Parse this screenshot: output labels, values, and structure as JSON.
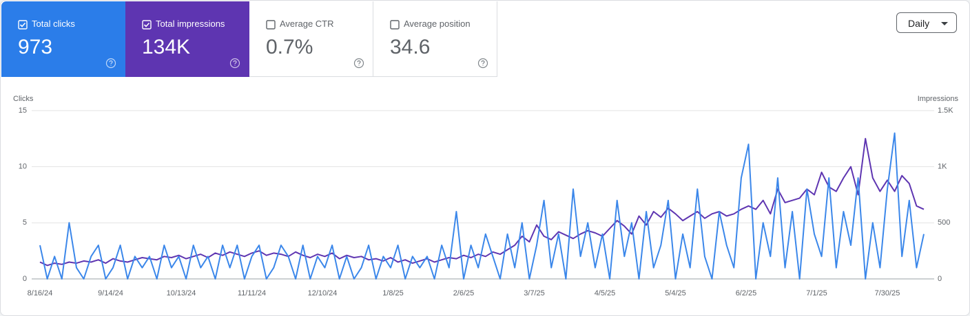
{
  "metrics": [
    {
      "label": "Total clicks",
      "value": "973",
      "checked": true,
      "color": "#2b7de9"
    },
    {
      "label": "Total impressions",
      "value": "134K",
      "checked": true,
      "color": "#5e35b1"
    },
    {
      "label": "Average CTR",
      "value": "0.7%",
      "checked": false
    },
    {
      "label": "Average position",
      "value": "34.6",
      "checked": false
    }
  ],
  "controls": {
    "granularity": "Daily"
  },
  "chart_data": {
    "type": "line",
    "y_label": "Clicks",
    "y2_label": "Impressions",
    "x": [
      "8/16/24",
      "8/19/24",
      "8/22/24",
      "8/25/24",
      "8/28/24",
      "8/31/24",
      "9/3/24",
      "9/6/24",
      "9/9/24",
      "9/12/24",
      "9/15/24",
      "9/18/24",
      "9/21/24",
      "9/24/24",
      "9/27/24",
      "9/30/24",
      "10/3/24",
      "10/6/24",
      "10/9/24",
      "10/12/24",
      "10/15/24",
      "10/18/24",
      "10/21/24",
      "10/24/24",
      "10/27/24",
      "10/30/24",
      "11/2/24",
      "11/5/24",
      "11/8/24",
      "11/11/24",
      "11/14/24",
      "11/17/24",
      "11/20/24",
      "11/23/24",
      "11/26/24",
      "11/29/24",
      "12/2/24",
      "12/5/24",
      "12/8/24",
      "12/11/24",
      "12/14/24",
      "12/17/24",
      "12/20/24",
      "12/23/24",
      "12/26/24",
      "12/29/24",
      "1/1/25",
      "1/4/25",
      "1/7/25",
      "1/10/25",
      "1/13/25",
      "1/16/25",
      "1/19/25",
      "1/22/25",
      "1/25/25",
      "1/28/25",
      "1/31/25",
      "2/3/25",
      "2/6/25",
      "2/9/25",
      "2/12/25",
      "2/15/25",
      "2/18/25",
      "2/21/25",
      "2/24/25",
      "2/27/25",
      "3/2/25",
      "3/5/25",
      "3/8/25",
      "3/11/25",
      "3/14/25",
      "3/17/25",
      "3/20/25",
      "3/23/25",
      "3/26/25",
      "3/29/25",
      "4/1/25",
      "4/4/25",
      "4/7/25",
      "4/10/25",
      "4/13/25",
      "4/16/25",
      "4/19/25",
      "4/22/25",
      "4/25/25",
      "4/28/25",
      "5/1/25",
      "5/4/25",
      "5/7/25",
      "5/10/25",
      "5/13/25",
      "5/16/25",
      "5/19/25",
      "5/22/25",
      "5/25/25",
      "5/28/25",
      "5/31/25",
      "6/3/25",
      "6/6/25",
      "6/9/25",
      "6/12/25",
      "6/15/25",
      "6/18/25",
      "6/21/25",
      "6/24/25",
      "6/27/25",
      "6/30/25",
      "7/3/25",
      "7/6/25",
      "7/9/25",
      "7/12/25",
      "7/15/25",
      "7/18/25",
      "7/21/25",
      "7/24/25",
      "7/27/25",
      "7/30/25",
      "8/2/25",
      "8/5/25",
      "8/8/25",
      "8/11/25",
      "8/14/25"
    ],
    "xlim": [
      "8/16/24",
      "8/14/25"
    ],
    "xticks": [
      "8/16/24",
      "9/14/24",
      "10/13/24",
      "11/11/24",
      "12/10/24",
      "1/8/25",
      "2/6/25",
      "3/7/25",
      "4/5/25",
      "5/4/25",
      "6/2/25",
      "7/1/25",
      "7/30/25"
    ],
    "ylim": [
      0,
      15
    ],
    "yticks": [
      0,
      5,
      10,
      15
    ],
    "y2lim": [
      0,
      1500
    ],
    "y2ticks": [
      0,
      500,
      {
        "value": 1000,
        "label": "1K"
      },
      {
        "value": 1500,
        "label": "1.5K"
      }
    ],
    "grid": true,
    "series": [
      {
        "name": "Impressions",
        "axis": "y2",
        "color": "#5e35b1",
        "values": [
          150,
          120,
          140,
          130,
          150,
          140,
          160,
          150,
          170,
          140,
          180,
          160,
          150,
          170,
          190,
          180,
          170,
          200,
          190,
          210,
          180,
          200,
          220,
          190,
          230,
          210,
          240,
          220,
          200,
          230,
          250,
          210,
          230,
          220,
          200,
          240,
          210,
          190,
          220,
          200,
          230,
          180,
          210,
          190,
          200,
          170,
          180,
          160,
          190,
          150,
          170,
          140,
          160,
          180,
          150,
          170,
          190,
          180,
          210,
          190,
          220,
          200,
          240,
          220,
          260,
          300,
          380,
          330,
          480,
          380,
          350,
          420,
          390,
          360,
          400,
          430,
          410,
          380,
          450,
          520,
          470,
          400,
          560,
          480,
          600,
          550,
          630,
          580,
          520,
          560,
          600,
          540,
          580,
          600,
          560,
          580,
          620,
          650,
          620,
          700,
          580,
          800,
          680,
          700,
          720,
          800,
          750,
          950,
          820,
          780,
          900,
          1000,
          750,
          1250,
          900,
          780,
          880,
          780,
          920,
          850,
          650,
          620
        ]
      },
      {
        "name": "Clicks",
        "axis": "y",
        "color": "#3b87ea",
        "values": [
          3,
          0,
          2,
          0,
          5,
          1,
          0,
          2,
          3,
          0,
          1,
          3,
          0,
          2,
          1,
          2,
          0,
          3,
          1,
          2,
          0,
          3,
          1,
          2,
          0,
          3,
          1,
          3,
          0,
          2,
          3,
          0,
          1,
          3,
          2,
          0,
          3,
          0,
          2,
          1,
          3,
          0,
          2,
          0,
          1,
          3,
          0,
          2,
          1,
          3,
          0,
          2,
          1,
          2,
          0,
          3,
          1,
          6,
          0,
          3,
          1,
          4,
          2,
          0,
          4,
          1,
          5,
          0,
          3,
          7,
          1,
          4,
          0,
          8,
          2,
          5,
          1,
          4,
          0,
          7,
          2,
          5,
          0,
          6,
          1,
          3,
          7,
          0,
          4,
          1,
          8,
          2,
          0,
          6,
          3,
          1,
          9,
          12,
          0,
          5,
          2,
          9,
          1,
          6,
          0,
          8,
          4,
          2,
          9,
          1,
          6,
          3,
          9,
          0,
          5,
          1,
          8,
          13,
          2,
          7,
          1,
          4
        ]
      }
    ]
  }
}
